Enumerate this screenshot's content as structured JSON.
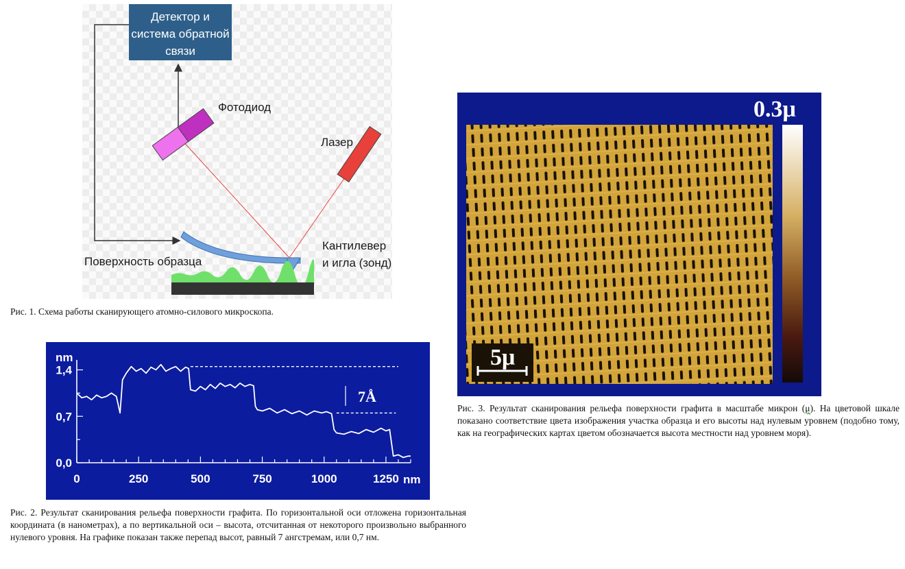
{
  "figure1": {
    "labels": {
      "detector_line1": "Детектор и",
      "detector_line2": "системa обратной",
      "detector_line3": "связи",
      "photodiode": "Фотодиод",
      "laser": "Лазер",
      "cantilever_line1": "Кантилевер",
      "cantilever_line2": "и игла (зонд)",
      "surface": "Поверхность образца"
    },
    "colors": {
      "detector_box": "#2e5f8a",
      "photodiode_magenta": "#c030c0",
      "photodiode_pink": "#ee72ee",
      "laser": "#e8403a",
      "beam": "#e8403a",
      "cantilever": "#6fa0dc",
      "sample_green": "#6fe06a",
      "substrate": "#333333"
    },
    "caption": "Рис. 1. Схема работы сканирующего атомно-силового микроскопа."
  },
  "figure2": {
    "chart_data": {
      "type": "line",
      "ylabel": "nm",
      "xlabel": "nm",
      "xlim": [
        0,
        1350
      ],
      "ylim": [
        0,
        1.55
      ],
      "x_ticks": [
        0,
        250,
        500,
        750,
        1000,
        1250
      ],
      "x_tick_labels": [
        "0",
        "250",
        "500",
        "750",
        "1000",
        "1250"
      ],
      "y_ticks": [
        0.0,
        0.7,
        1.4
      ],
      "y_tick_labels": [
        "0,0",
        "0,7",
        "1,4"
      ],
      "annotation": "7Å",
      "reference_lines": [
        {
          "y": 1.45,
          "x_start": 460,
          "x_end": 1300
        },
        {
          "y": 0.75,
          "x_start": 1050,
          "x_end": 1290
        }
      ],
      "series": [
        {
          "x": [
            0,
            20,
            40,
            60,
            80,
            100,
            120,
            140,
            160,
            175,
            185,
            200,
            220,
            240,
            260,
            280,
            300,
            320,
            340,
            360,
            380,
            400,
            420,
            440,
            452,
            460,
            480,
            500,
            520,
            540,
            560,
            580,
            600,
            620,
            640,
            660,
            680,
            700,
            715,
            722,
            730,
            750,
            780,
            810,
            840,
            870,
            900,
            930,
            960,
            990,
            1010,
            1030,
            1040,
            1050,
            1080,
            1110,
            1140,
            1170,
            1200,
            1230,
            1250,
            1265,
            1280,
            1300,
            1320,
            1340,
            1350
          ],
          "y": [
            1.05,
            0.98,
            1.0,
            0.95,
            1.02,
            0.98,
            1.0,
            1.05,
            1.0,
            0.75,
            1.25,
            1.35,
            1.45,
            1.38,
            1.42,
            1.35,
            1.44,
            1.4,
            1.48,
            1.38,
            1.42,
            1.45,
            1.38,
            1.44,
            1.42,
            1.1,
            1.08,
            1.15,
            1.1,
            1.18,
            1.12,
            1.2,
            1.15,
            1.18,
            1.13,
            1.2,
            1.15,
            1.18,
            1.16,
            0.85,
            0.8,
            0.78,
            0.82,
            0.75,
            0.8,
            0.74,
            0.78,
            0.72,
            0.78,
            0.75,
            0.77,
            0.74,
            0.5,
            0.45,
            0.43,
            0.47,
            0.44,
            0.5,
            0.46,
            0.52,
            0.48,
            0.5,
            0.1,
            0.12,
            0.08,
            0.1,
            0.1
          ]
        }
      ]
    },
    "caption": "Рис. 2. Результат сканирования рельефа поверхности графита. По горизонтальной оси отложена горизонтальная координата (в нанометрах), а по вертикальной оси – высота, отсчитанная от некоторого произвольно выбранного нулевого уровня. На графике показан также перепад высот, равный 7 ангстремам, или 0,7 нм."
  },
  "figure3": {
    "colorbar_max_label": "0.3μ",
    "scale_bar_label": "5μ",
    "colors": {
      "frame": "#0d1a8c",
      "surface": "#d2a43a",
      "pore": "#1a1206",
      "colorbar_top": "#ffffff",
      "colorbar_mid": "#b48834",
      "colorbar_bottom": "#140a08"
    },
    "caption_part1": "Рис. 3. Результат сканирования рельефа поверхности графита в масштабе микрон (",
    "caption_mu": "μ",
    "caption_part2": "). На цветовой шкале показано соответствие цвета изображения участка образца и его высоты над нулевым уровнем (подобно тому, как на географических картах цветом обозначается высота местности над уровнем моря)."
  }
}
